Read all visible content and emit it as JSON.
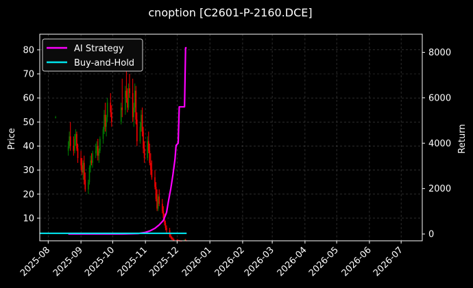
{
  "chart_data": {
    "type": "candlestick+line",
    "title": "cnoption [C2601-P-2160.DCE]",
    "xlabel": "",
    "ylabel_left": "Price",
    "ylabel_right": "Return",
    "ylim_left": [
      0.6,
      86.5
    ],
    "ylim_right": [
      -300,
      8800
    ],
    "xlim": [
      "2025-07-24",
      "2026-07-21"
    ],
    "grid": true,
    "legend_position": "top-left",
    "y_ticks_left": [
      10,
      20,
      30,
      40,
      50,
      60,
      70,
      80
    ],
    "y_ticks_right": [
      0,
      2000,
      4000,
      6000,
      8000
    ],
    "x_ticks": [
      "2025-08",
      "2025-09",
      "2025-10",
      "2025-11",
      "2025-12",
      "2026-01",
      "2026-02",
      "2026-03",
      "2026-04",
      "2026-05",
      "2026-06",
      "2026-07"
    ],
    "colors": {
      "up": "#008000",
      "down": "#ff0000",
      "ai_strategy": "#ff00ff",
      "buy_and_hold": "#00e5ee",
      "grid": "#4a4a4a",
      "background": "#000000"
    },
    "series": [
      {
        "name": "AI Strategy",
        "points": [
          [
            "2025-08-20",
            0
          ],
          [
            "2025-09-15",
            0
          ],
          [
            "2025-10-10",
            0
          ],
          [
            "2025-10-25",
            20
          ],
          [
            "2025-11-01",
            70
          ],
          [
            "2025-11-05",
            130
          ],
          [
            "2025-11-10",
            250
          ],
          [
            "2025-11-14",
            400
          ],
          [
            "2025-11-18",
            600
          ],
          [
            "2025-11-21",
            950
          ],
          [
            "2025-11-23",
            1500
          ],
          [
            "2025-11-25",
            2000
          ],
          [
            "2025-11-26",
            2300
          ],
          [
            "2025-11-27",
            2600
          ],
          [
            "2025-11-29",
            3300
          ],
          [
            "2025-11-30",
            3900
          ],
          [
            "2025-12-02",
            4000
          ],
          [
            "2025-12-03",
            5600
          ],
          [
            "2025-12-08",
            5600
          ],
          [
            "2025-12-09",
            8200
          ],
          [
            "2025-12-10",
            8200
          ]
        ]
      },
      {
        "name": "Buy-and-Hold",
        "points": [
          [
            "2025-07-24",
            30
          ],
          [
            "2025-12-10",
            30
          ]
        ]
      }
    ],
    "candles": [
      [
        "2025-08-08",
        52,
        52.5,
        51.5,
        52
      ],
      [
        "2025-08-20",
        38,
        42,
        36,
        40
      ],
      [
        "2025-08-21",
        40,
        46,
        39,
        44
      ],
      [
        "2025-08-22",
        44,
        50,
        38,
        40
      ],
      [
        "2025-08-25",
        40,
        44,
        36,
        38
      ],
      [
        "2025-08-26",
        38,
        45,
        37,
        43
      ],
      [
        "2025-08-27",
        43,
        47,
        40,
        45
      ],
      [
        "2025-08-28",
        45,
        46,
        38,
        39
      ],
      [
        "2025-08-29",
        39,
        41,
        33,
        35
      ],
      [
        "2025-09-01",
        35,
        38,
        30,
        32
      ],
      [
        "2025-09-02",
        32,
        35,
        28,
        29
      ],
      [
        "2025-09-03",
        29,
        34,
        26,
        33
      ],
      [
        "2025-09-04",
        33,
        36,
        24,
        26
      ],
      [
        "2025-09-05",
        26,
        29,
        21,
        22
      ],
      [
        "2025-09-08",
        22,
        26,
        20,
        25
      ],
      [
        "2025-09-09",
        25,
        32,
        24,
        31
      ],
      [
        "2025-09-10",
        31,
        36,
        29,
        34
      ],
      [
        "2025-09-11",
        34,
        37,
        32,
        33
      ],
      [
        "2025-09-12",
        33,
        38,
        31,
        37
      ],
      [
        "2025-09-15",
        37,
        41,
        35,
        38
      ],
      [
        "2025-09-16",
        38,
        42,
        36,
        40
      ],
      [
        "2025-09-17",
        40,
        43,
        34,
        36
      ],
      [
        "2025-09-18",
        36,
        39,
        33,
        38
      ],
      [
        "2025-09-19",
        38,
        44,
        37,
        43
      ],
      [
        "2025-09-22",
        43,
        48,
        41,
        47
      ],
      [
        "2025-09-23",
        47,
        55,
        45,
        53
      ],
      [
        "2025-09-24",
        53,
        58,
        46,
        48
      ],
      [
        "2025-09-25",
        48,
        53,
        44,
        52
      ],
      [
        "2025-09-26",
        52,
        60,
        50,
        58
      ],
      [
        "2025-09-29",
        58,
        62,
        52,
        54
      ],
      [
        "2025-09-30",
        54,
        57,
        48,
        50
      ],
      [
        "2025-10-09",
        50,
        58,
        49,
        56
      ],
      [
        "2025-10-10",
        56,
        68,
        52,
        55
      ],
      [
        "2025-10-13",
        55,
        65,
        53,
        63
      ],
      [
        "2025-10-14",
        63,
        73,
        58,
        60
      ],
      [
        "2025-10-15",
        60,
        64,
        54,
        56
      ],
      [
        "2025-10-16",
        56,
        66,
        55,
        64
      ],
      [
        "2025-10-17",
        64,
        70,
        60,
        62
      ],
      [
        "2025-10-20",
        62,
        68,
        50,
        52
      ],
      [
        "2025-10-21",
        52,
        58,
        48,
        56
      ],
      [
        "2025-10-22",
        56,
        66,
        54,
        63
      ],
      [
        "2025-10-23",
        63,
        65,
        49,
        51
      ],
      [
        "2025-10-24",
        51,
        54,
        40,
        42
      ],
      [
        "2025-10-27",
        42,
        50,
        41,
        48
      ],
      [
        "2025-10-28",
        48,
        55,
        46,
        53
      ],
      [
        "2025-10-29",
        53,
        56,
        44,
        46
      ],
      [
        "2025-10-30",
        46,
        48,
        37,
        39
      ],
      [
        "2025-10-31",
        39,
        42,
        33,
        35
      ],
      [
        "2025-11-03",
        35,
        44,
        34,
        42
      ],
      [
        "2025-11-04",
        42,
        46,
        37,
        38
      ],
      [
        "2025-11-05",
        38,
        41,
        32,
        33
      ],
      [
        "2025-11-06",
        33,
        37,
        28,
        30
      ],
      [
        "2025-11-07",
        30,
        34,
        26,
        27
      ],
      [
        "2025-11-10",
        27,
        30,
        22,
        23
      ],
      [
        "2025-11-11",
        23,
        25,
        17,
        18
      ],
      [
        "2025-11-12",
        18,
        22,
        13,
        14
      ],
      [
        "2025-11-13",
        14,
        20,
        13,
        19
      ],
      [
        "2025-11-14",
        19,
        22,
        15,
        16
      ],
      [
        "2025-11-17",
        16,
        18,
        12,
        13
      ],
      [
        "2025-11-18",
        13,
        15,
        9,
        10
      ],
      [
        "2025-11-19",
        10,
        12,
        7,
        8
      ],
      [
        "2025-11-20",
        8,
        9,
        5,
        6
      ],
      [
        "2025-11-21",
        6,
        7,
        4,
        5
      ],
      [
        "2025-11-24",
        5,
        6,
        2,
        2.5
      ],
      [
        "2025-11-25",
        2.5,
        3.5,
        1.5,
        2
      ],
      [
        "2025-11-26",
        2,
        2.5,
        1,
        1.2
      ],
      [
        "2025-11-27",
        1.2,
        2,
        0.8,
        1
      ],
      [
        "2025-11-28",
        1,
        1.5,
        0.7,
        0.9
      ],
      [
        "2025-12-01",
        0.9,
        1.3,
        0.6,
        0.8
      ],
      [
        "2025-12-02",
        0.8,
        1.1,
        0.6,
        0.7
      ],
      [
        "2025-12-03",
        0.7,
        0.9,
        0.6,
        0.65
      ],
      [
        "2025-12-04",
        0.65,
        0.8,
        0.6,
        0.62
      ],
      [
        "2025-12-05",
        0.62,
        0.7,
        0.6,
        0.61
      ],
      [
        "2025-12-08",
        0.61,
        1.2,
        0.6,
        1.0
      ],
      [
        "2025-12-09",
        1.0,
        1.4,
        0.6,
        0.7
      ],
      [
        "2025-12-10",
        0.7,
        0.8,
        0.6,
        0.62
      ]
    ]
  }
}
